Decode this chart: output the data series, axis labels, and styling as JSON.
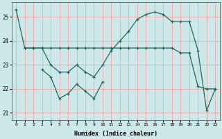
{
  "xlabel": "Humidex (Indice chaleur)",
  "bg_color": "#cce8e8",
  "grid_color": "#f5aaaa",
  "line_color": "#1a6b5e",
  "xlim": [
    -0.5,
    23.5
  ],
  "ylim": [
    20.7,
    25.6
  ],
  "yticks": [
    21,
    22,
    23,
    24,
    25
  ],
  "xticks": [
    0,
    1,
    2,
    3,
    4,
    5,
    6,
    7,
    8,
    9,
    10,
    11,
    12,
    13,
    14,
    15,
    16,
    17,
    18,
    19,
    20,
    21,
    22,
    23
  ],
  "line_upper_x": [
    0,
    1,
    2,
    3,
    4,
    5,
    6,
    7,
    8,
    9,
    10,
    11,
    12,
    13,
    14,
    15,
    16,
    17,
    18,
    19,
    20,
    21,
    22,
    23
  ],
  "line_upper_y": [
    25.3,
    23.7,
    23.7,
    23.7,
    23.0,
    22.7,
    22.7,
    23.0,
    22.7,
    22.5,
    23.0,
    23.6,
    24.0,
    24.4,
    24.9,
    25.1,
    25.2,
    25.1,
    24.8,
    24.8,
    24.8,
    23.6,
    21.1,
    22.0
  ],
  "line_mid_x": [
    1,
    2,
    3,
    4,
    5,
    6,
    7,
    8,
    9,
    10,
    11,
    12,
    13,
    14,
    15,
    16,
    17,
    18,
    19,
    20,
    21,
    22,
    23
  ],
  "line_mid_y": [
    23.7,
    23.7,
    23.7,
    23.7,
    23.7,
    23.7,
    23.7,
    23.7,
    23.7,
    23.7,
    23.7,
    23.7,
    23.7,
    23.7,
    23.7,
    23.7,
    23.7,
    23.7,
    23.5,
    23.5,
    22.1,
    22.0,
    22.0
  ],
  "line_low_x": [
    3,
    4,
    5,
    6,
    7,
    8,
    9,
    10
  ],
  "line_low_y": [
    22.8,
    22.5,
    21.6,
    21.8,
    22.2,
    21.9,
    21.6,
    22.3
  ]
}
